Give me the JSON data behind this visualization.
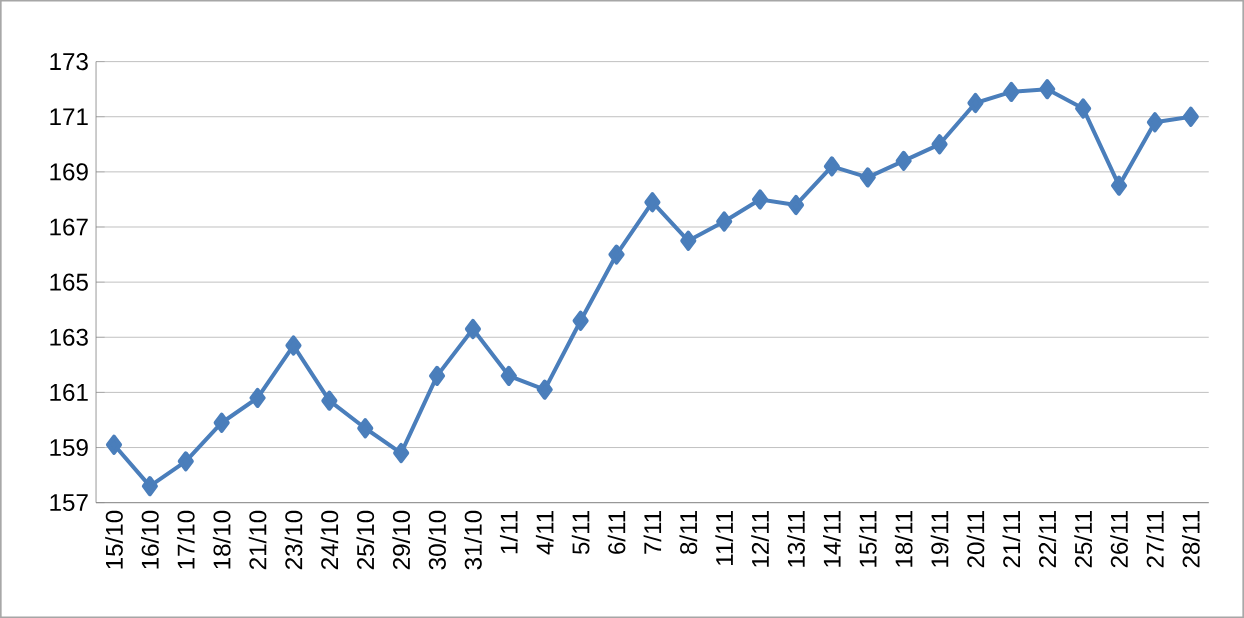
{
  "chart_data": {
    "type": "line",
    "categories": [
      "15/10",
      "16/10",
      "17/10",
      "18/10",
      "21/10",
      "23/10",
      "24/10",
      "25/10",
      "29/10",
      "30/10",
      "31/10",
      "1/11",
      "4/11",
      "5/11",
      "6/11",
      "7/11",
      "8/11",
      "11/11",
      "12/11",
      "13/11",
      "14/11",
      "15/11",
      "18/11",
      "19/11",
      "20/11",
      "21/11",
      "22/11",
      "25/11",
      "26/11",
      "27/11",
      "28/11"
    ],
    "values": [
      159.1,
      157.6,
      158.5,
      159.9,
      160.8,
      162.7,
      160.7,
      159.7,
      158.8,
      161.6,
      163.3,
      161.6,
      161.1,
      163.6,
      166.0,
      167.9,
      166.5,
      167.2,
      168.0,
      167.8,
      169.2,
      168.8,
      169.4,
      170.0,
      171.5,
      171.9,
      172.0,
      171.3,
      168.5,
      170.8,
      171.0
    ],
    "color": "#4a7ebb",
    "marker": "diamond",
    "line_style": "solid",
    "grid": "y",
    "ylim": [
      157,
      173
    ],
    "yticks": [
      157,
      159,
      161,
      163,
      165,
      167,
      169,
      171,
      173
    ]
  }
}
